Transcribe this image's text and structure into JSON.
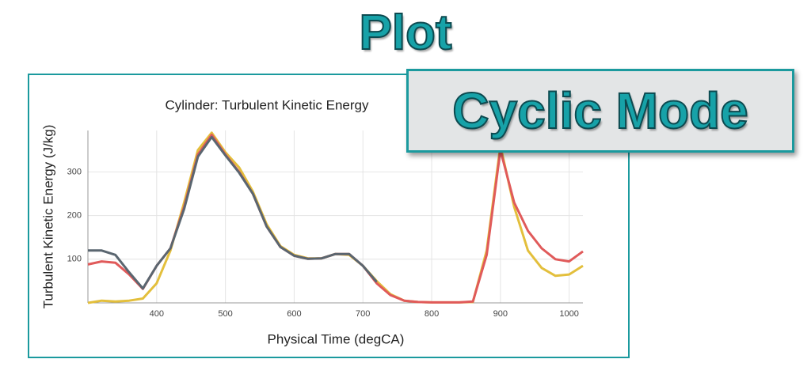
{
  "slide": {
    "title": "Plot",
    "badge": "Cyclic Mode"
  },
  "chart_data": {
    "type": "line",
    "title": "Cylinder: Turbulent Kinetic Energy",
    "x_label": "Physical Time (degCA)",
    "y_label": "Turbulent Kinetic Energy (J/kg)",
    "x": [
      300,
      320,
      340,
      360,
      380,
      400,
      420,
      440,
      460,
      480,
      500,
      520,
      540,
      560,
      580,
      600,
      620,
      640,
      660,
      680,
      700,
      720,
      740,
      760,
      780,
      800,
      820,
      840,
      860,
      880,
      900,
      920,
      940,
      960,
      980,
      1000,
      1020
    ],
    "series": [
      {
        "color": "#e3bf3c",
        "values": [
          0,
          5,
          3,
          5,
          10,
          45,
          120,
          230,
          350,
          390,
          345,
          310,
          255,
          180,
          130,
          110,
          102,
          102,
          112,
          110,
          85,
          50,
          20,
          5,
          2,
          1,
          1,
          1,
          2,
          120,
          360,
          220,
          120,
          80,
          62,
          65,
          85
        ]
      },
      {
        "color": "#e05a5a",
        "values": [
          88,
          95,
          92,
          65,
          32,
          85,
          125,
          220,
          340,
          385,
          340,
          300,
          250,
          175,
          128,
          108,
          101,
          102,
          112,
          112,
          85,
          45,
          18,
          5,
          2,
          1,
          1,
          1,
          3,
          110,
          350,
          230,
          165,
          125,
          100,
          95,
          118
        ]
      },
      {
        "color": "#5a6670",
        "values": [
          120,
          120,
          110,
          70,
          33,
          85,
          125,
          215,
          335,
          380,
          338,
          298,
          250,
          175,
          128,
          108,
          101,
          102,
          112,
          112,
          85,
          48,
          null,
          null,
          null,
          null,
          null,
          null,
          null,
          null,
          null,
          null,
          null,
          null,
          null,
          null,
          null
        ]
      }
    ],
    "xlim": [
      300,
      1020
    ],
    "ylim": [
      0,
      395
    ],
    "xticks": [
      400,
      500,
      600,
      700,
      800,
      900,
      1000
    ],
    "yticks": [
      100,
      200,
      300
    ],
    "grid": true
  }
}
